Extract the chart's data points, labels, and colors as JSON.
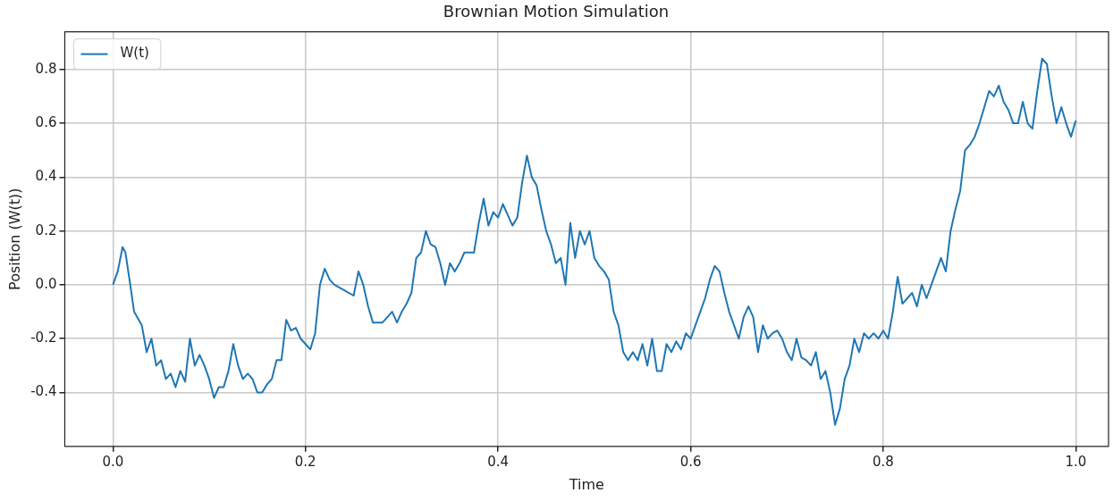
{
  "chart_data": {
    "type": "line",
    "title": "Brownian Motion Simulation",
    "xlabel": "Time",
    "ylabel": "Position (W(t))",
    "x": [
      0,
      0.005,
      0.01,
      0.013,
      0.018,
      0.022,
      0.03,
      0.035,
      0.04,
      0.045,
      0.05,
      0.055,
      0.06,
      0.065,
      0.07,
      0.075,
      0.08,
      0.085,
      0.09,
      0.095,
      0.1,
      0.105,
      0.11,
      0.115,
      0.12,
      0.125,
      0.13,
      0.135,
      0.14,
      0.145,
      0.15,
      0.155,
      0.16,
      0.165,
      0.17,
      0.175,
      0.18,
      0.185,
      0.19,
      0.195,
      0.2,
      0.205,
      0.21,
      0.215,
      0.22,
      0.225,
      0.23,
      0.24,
      0.25,
      0.255,
      0.26,
      0.265,
      0.27,
      0.28,
      0.285,
      0.29,
      0.295,
      0.3,
      0.305,
      0.31,
      0.315,
      0.32,
      0.325,
      0.33,
      0.335,
      0.34,
      0.345,
      0.35,
      0.355,
      0.36,
      0.365,
      0.37,
      0.375,
      0.38,
      0.385,
      0.39,
      0.395,
      0.4,
      0.405,
      0.41,
      0.415,
      0.42,
      0.425,
      0.43,
      0.435,
      0.44,
      0.445,
      0.45,
      0.455,
      0.46,
      0.465,
      0.47,
      0.475,
      0.48,
      0.485,
      0.49,
      0.495,
      0.5,
      0.505,
      0.51,
      0.515,
      0.52,
      0.525,
      0.53,
      0.535,
      0.54,
      0.545,
      0.55,
      0.555,
      0.56,
      0.565,
      0.57,
      0.575,
      0.58,
      0.585,
      0.59,
      0.595,
      0.6,
      0.605,
      0.61,
      0.615,
      0.62,
      0.625,
      0.63,
      0.635,
      0.64,
      0.645,
      0.65,
      0.655,
      0.66,
      0.665,
      0.67,
      0.675,
      0.68,
      0.685,
      0.69,
      0.695,
      0.7,
      0.705,
      0.71,
      0.715,
      0.72,
      0.725,
      0.73,
      0.735,
      0.74,
      0.745,
      0.75,
      0.755,
      0.76,
      0.765,
      0.77,
      0.775,
      0.78,
      0.785,
      0.79,
      0.795,
      0.8,
      0.805,
      0.81,
      0.815,
      0.82,
      0.825,
      0.83,
      0.835,
      0.84,
      0.845,
      0.85,
      0.855,
      0.86,
      0.865,
      0.87,
      0.875,
      0.88,
      0.885,
      0.89,
      0.895,
      0.9,
      0.905,
      0.91,
      0.915,
      0.92,
      0.925,
      0.93,
      0.935,
      0.94,
      0.945,
      0.95,
      0.955,
      0.96,
      0.965,
      0.97,
      0.975,
      0.98,
      0.985,
      0.99,
      0.995,
      1.0
    ],
    "series": [
      {
        "name": "W(t)",
        "color": "#1f77b4",
        "values": [
          0,
          0.05,
          0.14,
          0.12,
          0,
          -0.1,
          -0.15,
          -0.25,
          -0.2,
          -0.3,
          -0.28,
          -0.35,
          -0.33,
          -0.38,
          -0.32,
          -0.36,
          -0.2,
          -0.3,
          -0.26,
          -0.3,
          -0.35,
          -0.42,
          -0.38,
          -0.38,
          -0.32,
          -0.22,
          -0.3,
          -0.35,
          -0.33,
          -0.35,
          -0.4,
          -0.4,
          -0.37,
          -0.35,
          -0.28,
          -0.28,
          -0.13,
          -0.17,
          -0.16,
          -0.2,
          -0.22,
          -0.24,
          -0.18,
          0,
          0.06,
          0.02,
          0,
          -0.02,
          -0.04,
          0.05,
          0,
          -0.08,
          -0.14,
          -0.14,
          -0.12,
          -0.1,
          -0.14,
          -0.1,
          -0.07,
          -0.03,
          0.1,
          0.12,
          0.2,
          0.15,
          0.14,
          0.08,
          0,
          0.08,
          0.05,
          0.08,
          0.12,
          0.12,
          0.12,
          0.23,
          0.32,
          0.22,
          0.27,
          0.25,
          0.3,
          0.26,
          0.22,
          0.25,
          0.38,
          0.48,
          0.4,
          0.37,
          0.28,
          0.2,
          0.15,
          0.08,
          0.1,
          0,
          0.23,
          0.1,
          0.2,
          0.15,
          0.2,
          0.1,
          0.07,
          0.05,
          0.02,
          -0.1,
          -0.15,
          -0.25,
          -0.28,
          -0.25,
          -0.28,
          -0.22,
          -0.3,
          -0.2,
          -0.32,
          -0.32,
          -0.22,
          -0.25,
          -0.21,
          -0.24,
          -0.18,
          -0.2,
          -0.15,
          -0.1,
          -0.05,
          0.02,
          0.07,
          0.05,
          -0.03,
          -0.1,
          -0.15,
          -0.2,
          -0.12,
          -0.08,
          -0.12,
          -0.25,
          -0.15,
          -0.2,
          -0.18,
          -0.17,
          -0.2,
          -0.25,
          -0.28,
          -0.2,
          -0.27,
          -0.28,
          -0.3,
          -0.25,
          -0.35,
          -0.32,
          -0.4,
          -0.52,
          -0.46,
          -0.35,
          -0.3,
          -0.2,
          -0.25,
          -0.18,
          -0.2,
          -0.18,
          -0.2,
          -0.17,
          -0.2,
          -0.1,
          0.03,
          -0.07,
          -0.05,
          -0.03,
          -0.08,
          0,
          -0.05,
          0,
          0.05,
          0.1,
          0.05,
          0.2,
          0.28,
          0.35,
          0.5,
          0.52,
          0.55,
          0.6,
          0.66,
          0.72,
          0.7,
          0.74,
          0.68,
          0.65,
          0.6,
          0.6,
          0.68,
          0.6,
          0.58,
          0.72,
          0.84,
          0.82,
          0.7,
          0.6,
          0.66,
          0.6,
          0.55,
          0.61
        ]
      }
    ],
    "xlim": [
      -0.05,
      1.034
    ],
    "xticks": [
      {
        "value": 0,
        "label": "0.0"
      },
      0.2,
      0.4,
      0.6,
      0.8,
      {
        "value": 1,
        "label": "1.0"
      }
    ],
    "ylim": [
      -0.6,
      0.94
    ],
    "yticks": [
      -0.4,
      -0.2,
      {
        "value": 0,
        "label": "0.0"
      },
      0.2,
      0.4,
      0.6,
      0.8
    ],
    "grid": true,
    "legend": "top left",
    "line_style": "solid"
  }
}
